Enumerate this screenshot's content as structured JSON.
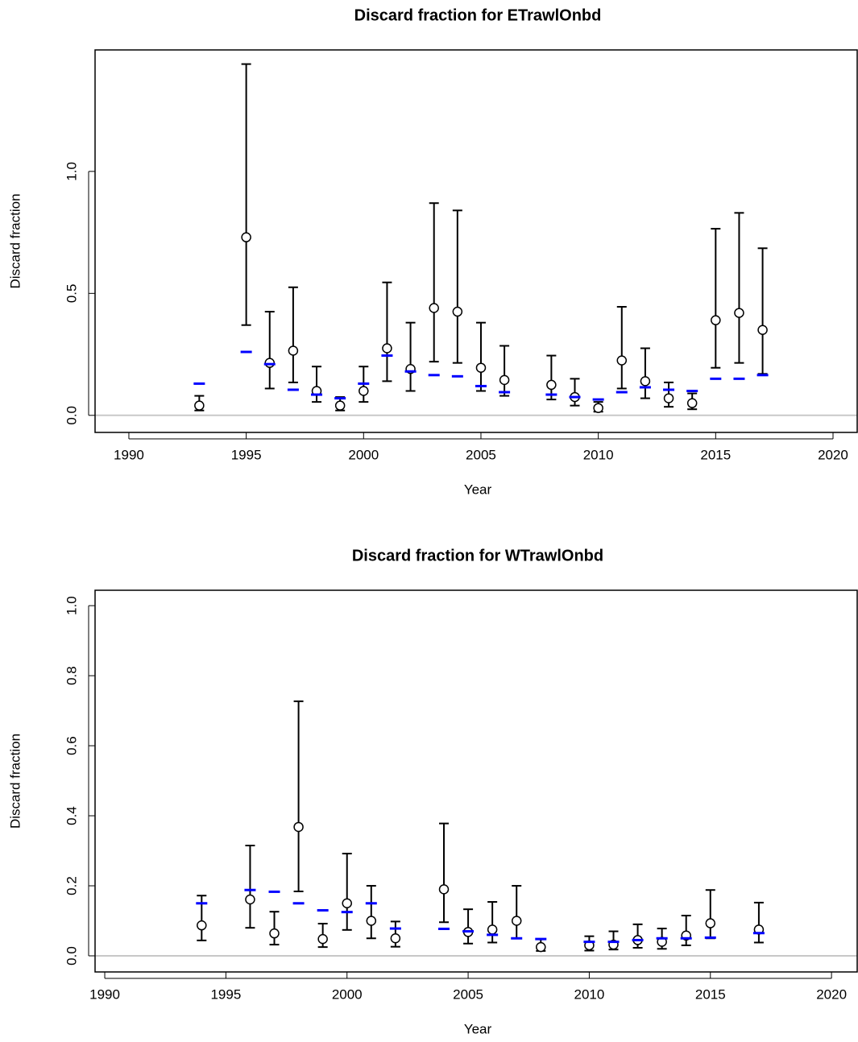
{
  "chart_data": [
    {
      "type": "errorbar",
      "title": "Discard fraction for ETrawlOnbd",
      "xlabel": "Year",
      "ylabel": "Discard fraction",
      "x": [
        1993,
        1995,
        1996,
        1997,
        1998,
        1999,
        2000,
        2001,
        2002,
        2003,
        2004,
        2005,
        2006,
        2008,
        2009,
        2010,
        2011,
        2012,
        2013,
        2014,
        2015,
        2016,
        2017
      ],
      "series": [
        {
          "marker": "circle",
          "color": "#000000",
          "values": [
            0.04,
            0.73,
            0.215,
            0.265,
            0.1,
            0.04,
            0.1,
            0.275,
            0.19,
            0.44,
            0.425,
            0.195,
            0.145,
            0.125,
            0.075,
            0.03,
            0.225,
            0.14,
            0.07,
            0.05,
            0.39,
            0.42,
            0.35
          ],
          "lower": [
            0.02,
            0.37,
            0.11,
            0.135,
            0.055,
            0.02,
            0.055,
            0.14,
            0.1,
            0.22,
            0.215,
            0.1,
            0.08,
            0.065,
            0.04,
            0.015,
            0.11,
            0.07,
            0.035,
            0.025,
            0.195,
            0.215,
            0.17
          ],
          "upper": [
            0.08,
            1.44,
            0.425,
            0.525,
            0.2,
            0.075,
            0.2,
            0.545,
            0.38,
            0.87,
            0.84,
            0.38,
            0.285,
            0.245,
            0.15,
            0.055,
            0.445,
            0.275,
            0.135,
            0.09,
            0.765,
            0.83,
            0.685
          ]
        },
        {
          "marker": "dash",
          "color": "#0000ff",
          "values": [
            0.13,
            0.26,
            0.21,
            0.105,
            0.085,
            0.07,
            0.13,
            0.245,
            0.18,
            0.165,
            0.16,
            0.12,
            0.095,
            0.085,
            0.075,
            0.065,
            0.095,
            0.115,
            0.105,
            0.1,
            0.15,
            0.15,
            0.165
          ]
        }
      ],
      "hline": 0,
      "hline_color": "#c8c8c8",
      "xlim": [
        1988.56,
        2021.03
      ],
      "ylim": [
        -0.07,
        1.498
      ],
      "xticks": [
        1990,
        1995,
        2000,
        2005,
        2010,
        2015,
        2020
      ],
      "yticks": [
        {
          "value": 0,
          "label": "0.0"
        },
        {
          "value": 0.5,
          "label": "0.5"
        },
        {
          "value": 1,
          "label": "1.0"
        }
      ]
    },
    {
      "type": "errorbar",
      "title": "Discard fraction for WTrawlOnbd",
      "xlabel": "Year",
      "ylabel": "Discard fraction",
      "x": [
        1994,
        1996,
        1997,
        1998,
        1999,
        2000,
        2001,
        2002,
        2004,
        2005,
        2006,
        2007,
        2008,
        2010,
        2011,
        2012,
        2013,
        2014,
        2015,
        2017
      ],
      "series": [
        {
          "marker": "circle",
          "color": "#000000",
          "values": [
            0.087,
            0.161,
            0.064,
            0.368,
            0.048,
            0.15,
            0.1,
            0.05,
            0.19,
            0.068,
            0.075,
            0.1,
            0.025,
            0.03,
            0.032,
            0.045,
            0.04,
            0.058,
            0.093,
            0.075
          ],
          "lower": [
            0.044,
            0.08,
            0.032,
            0.184,
            0.025,
            0.074,
            0.05,
            0.026,
            0.096,
            0.035,
            0.038,
            0.05,
            0.014,
            0.015,
            0.018,
            0.023,
            0.02,
            0.03,
            0.05,
            0.038
          ],
          "upper": [
            0.172,
            0.315,
            0.126,
            0.727,
            0.092,
            0.292,
            0.2,
            0.098,
            0.378,
            0.133,
            0.154,
            0.2,
            0.048,
            0.056,
            0.07,
            0.09,
            0.078,
            0.115,
            0.188,
            0.152
          ]
        },
        {
          "marker": "dash",
          "color": "#0000ff",
          "values": [
            0.15,
            0.188,
            0.183,
            0.15,
            0.13,
            0.125,
            0.15,
            0.078,
            0.077,
            0.07,
            0.06,
            0.05,
            0.048,
            0.04,
            0.04,
            0.045,
            0.05,
            0.05,
            0.052,
            0.065
          ]
        }
      ],
      "hline": 0,
      "hline_color": "#c8c8c8",
      "xlim": [
        1989.6,
        2021.06
      ],
      "ylim": [
        -0.046,
        1.044
      ],
      "xticks": [
        1990,
        1995,
        2000,
        2005,
        2010,
        2015,
        2020
      ],
      "yticks": [
        {
          "value": 0,
          "label": "0.0"
        },
        {
          "value": 0.2,
          "label": "0.2"
        },
        {
          "value": 0.4,
          "label": "0.4"
        },
        {
          "value": 0.6,
          "label": "0.6"
        },
        {
          "value": 0.8,
          "label": "0.8"
        },
        {
          "value": 1,
          "label": "1.0"
        }
      ]
    }
  ]
}
